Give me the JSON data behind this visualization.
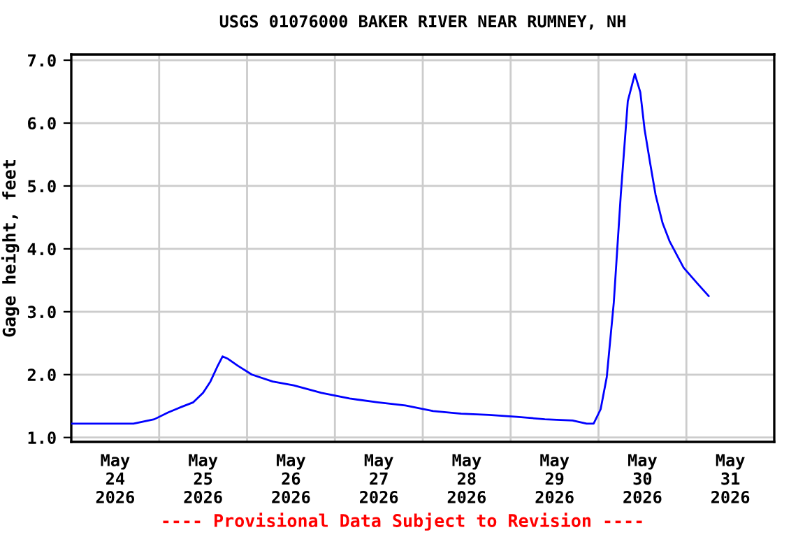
{
  "chart_data": {
    "type": "line",
    "title": "USGS 01076000 BAKER RIVER NEAR RUMNEY, NH",
    "ylabel": "Gage height, feet",
    "annotations": [
      "---- Provisional Data Subject to Revision ----"
    ],
    "x": [
      "2026-05-24T00:00",
      "2026-05-24T07:30",
      "2026-05-24T17:00",
      "2026-05-24T22:40",
      "2026-05-25T02:30",
      "2026-05-25T06:15",
      "2026-05-25T09:20",
      "2026-05-25T12:00",
      "2026-05-25T14:00",
      "2026-05-25T15:50",
      "2026-05-25T17:20",
      "2026-05-25T18:50",
      "2026-05-25T21:30",
      "2026-05-26T01:20",
      "2026-05-26T07:00",
      "2026-05-26T12:45",
      "2026-05-26T20:20",
      "2026-05-27T04:00",
      "2026-05-27T11:40",
      "2026-05-27T19:15",
      "2026-05-28T02:50",
      "2026-05-28T10:30",
      "2026-05-28T18:05",
      "2026-05-29T01:40",
      "2026-05-29T09:20",
      "2026-05-29T16:55",
      "2026-05-29T20:45",
      "2026-05-29T22:40",
      "2026-05-30T00:35",
      "2026-05-30T02:15",
      "2026-05-30T04:10",
      "2026-05-30T06:05",
      "2026-05-30T08:00",
      "2026-05-30T09:55",
      "2026-05-30T11:25",
      "2026-05-30T12:35",
      "2026-05-30T14:05",
      "2026-05-30T15:35",
      "2026-05-30T17:30",
      "2026-05-30T19:25",
      "2026-05-30T23:15",
      "2026-05-31T03:00",
      "2026-05-31T06:05"
    ],
    "series": [
      {
        "color": "#0000ff",
        "values": [
          1.22,
          1.22,
          1.22,
          1.29,
          1.4,
          1.49,
          1.56,
          1.71,
          1.89,
          2.12,
          2.29,
          2.25,
          2.14,
          2.0,
          1.89,
          1.83,
          1.71,
          1.62,
          1.56,
          1.51,
          1.42,
          1.38,
          1.36,
          1.33,
          1.29,
          1.27,
          1.22,
          1.22,
          1.45,
          1.96,
          3.14,
          4.86,
          6.35,
          6.78,
          6.49,
          5.9,
          5.37,
          4.86,
          4.41,
          4.12,
          3.7,
          3.45,
          3.25
        ]
      }
    ],
    "xlim": [
      "2026-05-24T00:00",
      "2026-06-01T00:00"
    ],
    "xticks": [
      {
        "value": "2026-05-24T12:00",
        "label": "May\n24\n2026"
      },
      {
        "value": "2026-05-25T12:00",
        "label": "May\n25\n2026"
      },
      {
        "value": "2026-05-26T12:00",
        "label": "May\n26\n2026"
      },
      {
        "value": "2026-05-27T12:00",
        "label": "May\n27\n2026"
      },
      {
        "value": "2026-05-28T12:00",
        "label": "May\n28\n2026"
      },
      {
        "value": "2026-05-29T12:00",
        "label": "May\n29\n2026"
      },
      {
        "value": "2026-05-30T12:00",
        "label": "May\n30\n2026"
      },
      {
        "value": "2026-05-31T12:00",
        "label": "May\n31\n2026"
      },
      {
        "value": "2026-05-25T00:00",
        "label": null
      },
      {
        "value": "2026-05-26T00:00",
        "label": null
      },
      {
        "value": "2026-05-27T00:00",
        "label": null
      },
      {
        "value": "2026-05-28T00:00",
        "label": null
      },
      {
        "value": "2026-05-29T00:00",
        "label": null
      },
      {
        "value": "2026-05-30T00:00",
        "label": null
      },
      {
        "value": "2026-05-31T00:00",
        "label": null
      }
    ],
    "ylim": [
      0.93,
      7.09
    ],
    "yticks": [
      {
        "value": 1,
        "label": "1.0"
      },
      {
        "value": 2,
        "label": "2.0"
      },
      {
        "value": 3,
        "label": "3.0"
      },
      {
        "value": 4,
        "label": "4.0"
      },
      {
        "value": 5,
        "label": "5.0"
      },
      {
        "value": 6,
        "label": "6.0"
      },
      {
        "value": 7,
        "label": "7.0"
      }
    ],
    "grid": true,
    "line_style": "solid",
    "marker": "none"
  }
}
